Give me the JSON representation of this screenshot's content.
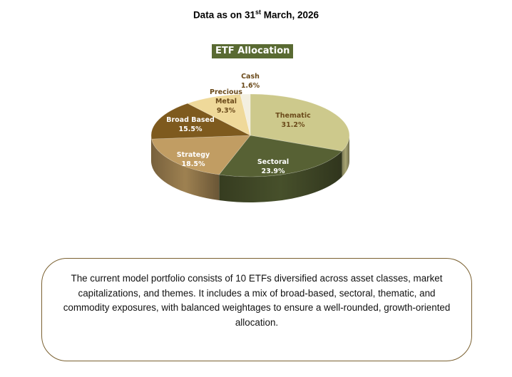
{
  "header": {
    "title_prefix": "Data as on 31",
    "title_sup": "st",
    "title_suffix": " March, 2026"
  },
  "chart_data": {
    "type": "pie",
    "title": "ETF Allocation",
    "style": "3d",
    "categories": [
      "Thematic",
      "Sectoral",
      "Strategy",
      "Broad Based",
      "Precious Metal",
      "Cash"
    ],
    "values": [
      31.2,
      23.9,
      18.5,
      15.5,
      9.3,
      1.6
    ],
    "labels": [
      "31.2%",
      "23.9%",
      "18.5%",
      "15.5%",
      "9.3%",
      "1.6%"
    ],
    "colors": [
      "#cdc98c",
      "#576134",
      "#c19d63",
      "#7e5a1e",
      "#efd99a",
      "#f3efe0"
    ],
    "legend": "none (data labels on slices)"
  },
  "labels": {
    "thematic": {
      "name": "Thematic",
      "pct": "31.2%"
    },
    "sectoral": {
      "name": "Sectoral",
      "pct": "23.9%"
    },
    "strategy": {
      "name": "Strategy",
      "pct": "18.5%"
    },
    "broad": {
      "name": "Broad Based",
      "pct": "15.5%"
    },
    "precious_1": "Precious",
    "precious_2": "Metal",
    "precious_pct": "9.3%",
    "cash": {
      "name": "Cash",
      "pct": "1.6%"
    }
  },
  "note": {
    "text": "The current model portfolio consists of 10 ETFs diversified across asset classes, market capitalizations, and themes. It includes a mix of broad-based, sectoral, thematic, and commodity exposures, with balanced weightages to ensure a well-rounded, growth-oriented allocation."
  }
}
